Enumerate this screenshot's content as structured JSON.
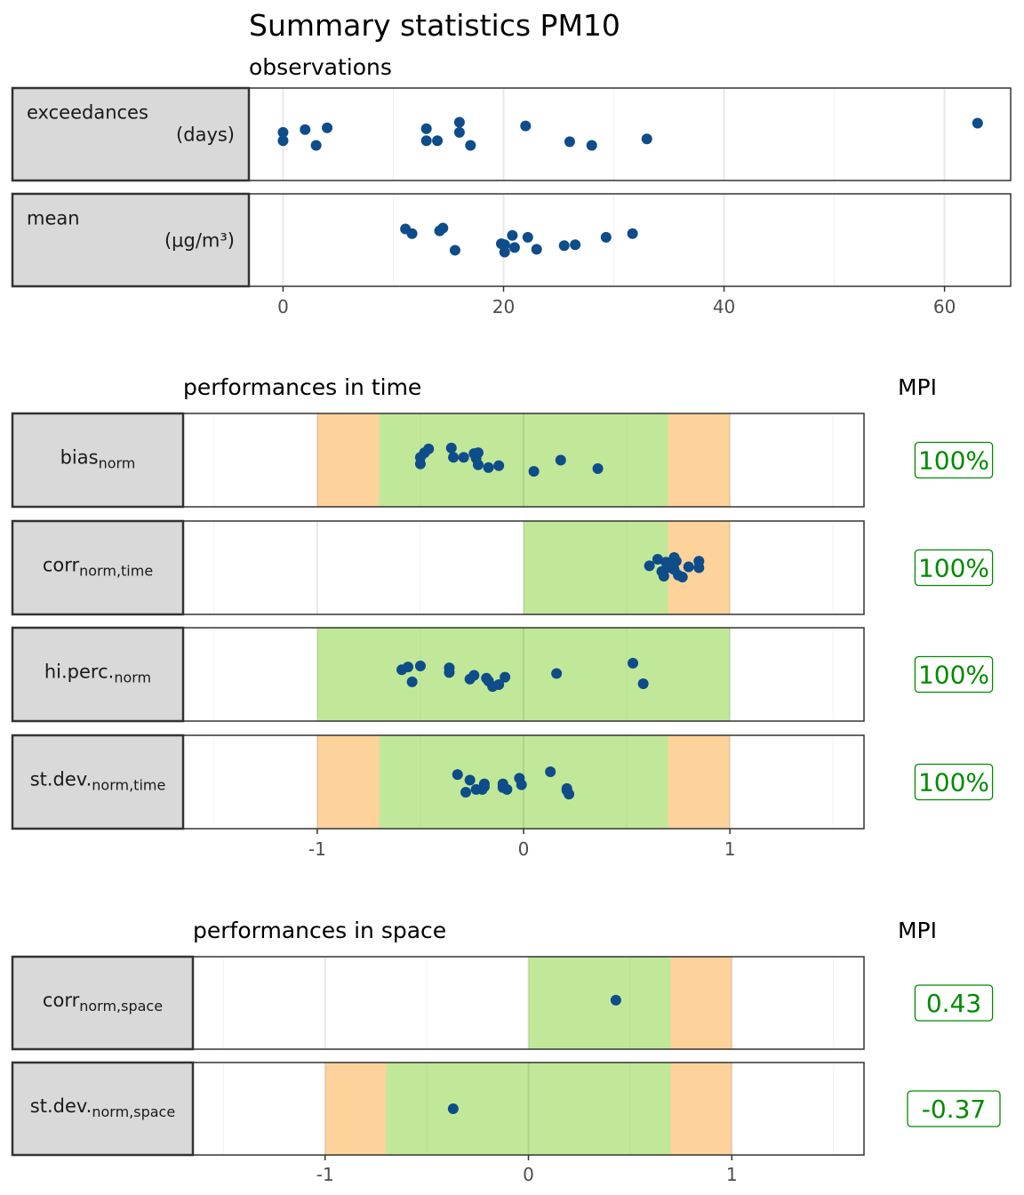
{
  "title": "Summary statistics PM10",
  "colors": {
    "point": "#0e4c8a",
    "green_zone": "#c1e899",
    "orange_zone": "#fdd29b",
    "strip_bg": "#d9d9d9",
    "mpi_text": "#008b00",
    "grid": "#ebebeb"
  },
  "chart_data": [
    {
      "type": "scatter",
      "subtitle": "observations",
      "xlim": [
        -3.1,
        66
      ],
      "xticks": [
        0,
        20,
        40,
        60
      ],
      "xtick_labels": [
        "0",
        "20",
        "40",
        "60"
      ],
      "rows": [
        {
          "label": "exceedances",
          "unit": "(days)",
          "points": [
            [
              0,
              0.52
            ],
            [
              0,
              0.43
            ],
            [
              2,
              0.55
            ],
            [
              3,
              0.38
            ],
            [
              4,
              0.57
            ],
            [
              13,
              0.56
            ],
            [
              13,
              0.43
            ],
            [
              14,
              0.43
            ],
            [
              16,
              0.63
            ],
            [
              16,
              0.52
            ],
            [
              17,
              0.38
            ],
            [
              22,
              0.59
            ],
            [
              26,
              0.42
            ],
            [
              28,
              0.38
            ],
            [
              33,
              0.45
            ],
            [
              63,
              0.62
            ]
          ]
        },
        {
          "label": "mean",
          "unit": "(µg/m³)",
          "points": [
            [
              11.1,
              0.62
            ],
            [
              11.7,
              0.57
            ],
            [
              14.2,
              0.6
            ],
            [
              14.5,
              0.63
            ],
            [
              15.6,
              0.39
            ],
            [
              19.8,
              0.46
            ],
            [
              20.1,
              0.37
            ],
            [
              20.1,
              0.45
            ],
            [
              20.8,
              0.55
            ],
            [
              21.0,
              0.42
            ],
            [
              22.2,
              0.53
            ],
            [
              23.0,
              0.4
            ],
            [
              25.5,
              0.44
            ],
            [
              26.5,
              0.45
            ],
            [
              29.3,
              0.53
            ],
            [
              31.7,
              0.57
            ]
          ]
        }
      ]
    },
    {
      "type": "scatter",
      "subtitle": "performances in time",
      "mpi_header": "MPI",
      "xlim": [
        -1.65,
        1.65
      ],
      "xticks": [
        -1,
        0,
        1
      ],
      "xtick_labels": [
        "-1",
        "0",
        "1"
      ],
      "rows": [
        {
          "label": "bias",
          "label_sub": "norm",
          "mpi": "100%",
          "zones": [
            {
              "color": "orange",
              "range": [
                -1,
                1
              ]
            },
            {
              "color": "green",
              "range": [
                -0.7,
                0.7
              ]
            }
          ],
          "points": [
            [
              -0.5,
              0.53
            ],
            [
              -0.5,
              0.46
            ],
            [
              -0.48,
              0.58
            ],
            [
              -0.46,
              0.62
            ],
            [
              -0.35,
              0.63
            ],
            [
              -0.34,
              0.53
            ],
            [
              -0.29,
              0.53
            ],
            [
              -0.24,
              0.57
            ],
            [
              -0.23,
              0.52
            ],
            [
              -0.22,
              0.58
            ],
            [
              -0.22,
              0.45
            ],
            [
              -0.17,
              0.42
            ],
            [
              -0.12,
              0.44
            ],
            [
              0.05,
              0.38
            ],
            [
              0.18,
              0.5
            ],
            [
              0.36,
              0.41
            ]
          ]
        },
        {
          "label": "corr",
          "label_sub": "norm,time",
          "mpi": "100%",
          "zones": [
            {
              "color": "orange",
              "range": [
                0,
                1
              ]
            },
            {
              "color": "green",
              "range": [
                0,
                0.7
              ]
            }
          ],
          "points": [
            [
              0.61,
              0.52
            ],
            [
              0.65,
              0.59
            ],
            [
              0.67,
              0.46
            ],
            [
              0.68,
              0.41
            ],
            [
              0.69,
              0.56
            ],
            [
              0.71,
              0.5
            ],
            [
              0.72,
              0.55
            ],
            [
              0.73,
              0.61
            ],
            [
              0.74,
              0.57
            ],
            [
              0.75,
              0.42
            ],
            [
              0.77,
              0.4
            ],
            [
              0.8,
              0.51
            ],
            [
              0.85,
              0.57
            ],
            [
              0.85,
              0.5
            ],
            [
              0.73,
              0.48
            ],
            [
              0.7,
              0.52
            ]
          ]
        },
        {
          "label": "hi.perc.",
          "label_sub": "norm",
          "mpi": "100%",
          "zones": [
            {
              "color": "green",
              "range": [
                -1,
                1
              ]
            }
          ],
          "points": [
            [
              -0.59,
              0.55
            ],
            [
              -0.56,
              0.58
            ],
            [
              -0.54,
              0.42
            ],
            [
              -0.5,
              0.59
            ],
            [
              -0.36,
              0.52
            ],
            [
              -0.36,
              0.57
            ],
            [
              -0.26,
              0.45
            ],
            [
              -0.24,
              0.49
            ],
            [
              -0.18,
              0.46
            ],
            [
              -0.17,
              0.43
            ],
            [
              -0.15,
              0.37
            ],
            [
              -0.12,
              0.39
            ],
            [
              -0.09,
              0.47
            ],
            [
              0.16,
              0.51
            ],
            [
              0.53,
              0.62
            ],
            [
              0.58,
              0.4
            ]
          ]
        },
        {
          "label": "st.dev.",
          "label_sub": "norm,time",
          "mpi": "100%",
          "zones": [
            {
              "color": "orange",
              "range": [
                -1,
                1
              ]
            },
            {
              "color": "green",
              "range": [
                -0.7,
                0.7
              ]
            }
          ],
          "points": [
            [
              -0.32,
              0.58
            ],
            [
              -0.28,
              0.39
            ],
            [
              -0.26,
              0.52
            ],
            [
              -0.23,
              0.42
            ],
            [
              -0.2,
              0.42
            ],
            [
              -0.19,
              0.45
            ],
            [
              -0.19,
              0.48
            ],
            [
              -0.1,
              0.44
            ],
            [
              -0.1,
              0.48
            ],
            [
              -0.08,
              0.42
            ],
            [
              -0.02,
              0.54
            ],
            [
              -0.01,
              0.47
            ],
            [
              0.13,
              0.61
            ],
            [
              0.21,
              0.41
            ],
            [
              0.21,
              0.43
            ],
            [
              0.22,
              0.37
            ]
          ]
        }
      ]
    },
    {
      "type": "scatter",
      "subtitle": "performances in space",
      "mpi_header": "MPI",
      "xlim": [
        -1.65,
        1.65
      ],
      "xticks": [
        -1,
        0,
        1
      ],
      "xtick_labels": [
        "-1",
        "0",
        "1"
      ],
      "rows": [
        {
          "label": "corr",
          "label_sub": "norm,space",
          "mpi": "0.43",
          "zones": [
            {
              "color": "orange",
              "range": [
                0,
                1
              ]
            },
            {
              "color": "green",
              "range": [
                0,
                0.7
              ]
            }
          ],
          "points": [
            [
              0.43,
              0.53
            ]
          ]
        },
        {
          "label": "st.dev.",
          "label_sub": "norm,space",
          "mpi": "-0.37",
          "zones": [
            {
              "color": "orange",
              "range": [
                -1,
                1
              ]
            },
            {
              "color": "green",
              "range": [
                -0.7,
                0.7
              ]
            }
          ],
          "points": [
            [
              -0.37,
              0.5
            ]
          ]
        }
      ]
    }
  ]
}
